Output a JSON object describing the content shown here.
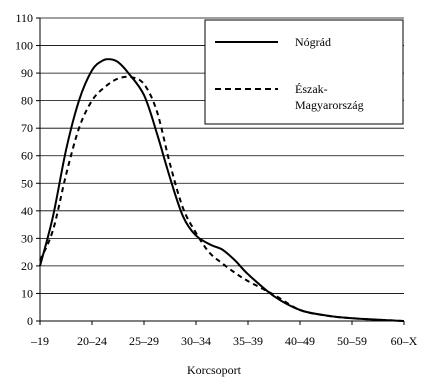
{
  "chart_data": {
    "type": "line",
    "title": "",
    "xlabel": "Korcsoport",
    "ylabel": "",
    "ylim": [
      0,
      110
    ],
    "y_ticks": [
      0,
      10,
      20,
      30,
      40,
      50,
      60,
      70,
      80,
      90,
      100,
      110
    ],
    "categories": [
      "–19",
      "20–24",
      "25–29",
      "30–34",
      "35–39",
      "40–49",
      "50–59",
      "60–X"
    ],
    "grid": "horizontal",
    "legend_position": "top-right",
    "series": [
      {
        "name": "Nógrád",
        "style": "solid",
        "color": "#000000",
        "points": [
          [
            0,
            20
          ],
          [
            0.25,
            38
          ],
          [
            0.5,
            62
          ],
          [
            0.75,
            80
          ],
          [
            1.0,
            91
          ],
          [
            1.2,
            94.5
          ],
          [
            1.35,
            95
          ],
          [
            1.5,
            94
          ],
          [
            1.7,
            90
          ],
          [
            2.0,
            82
          ],
          [
            2.25,
            68
          ],
          [
            2.5,
            52
          ],
          [
            2.75,
            38
          ],
          [
            3.0,
            31
          ],
          [
            3.3,
            27.5
          ],
          [
            3.5,
            26
          ],
          [
            3.75,
            22
          ],
          [
            4.0,
            17
          ],
          [
            4.5,
            9
          ],
          [
            5.0,
            4
          ],
          [
            5.5,
            2
          ],
          [
            6.0,
            1
          ],
          [
            7.0,
            0
          ]
        ]
      },
      {
        "name": "Észak-Magyarország",
        "style": "dashed",
        "color": "#000000",
        "points": [
          [
            0,
            22
          ],
          [
            0.25,
            33
          ],
          [
            0.5,
            53
          ],
          [
            0.75,
            70
          ],
          [
            1.0,
            80
          ],
          [
            1.25,
            85
          ],
          [
            1.5,
            88
          ],
          [
            1.75,
            88.5
          ],
          [
            2.0,
            86
          ],
          [
            2.25,
            76
          ],
          [
            2.5,
            57
          ],
          [
            2.75,
            41
          ],
          [
            3.0,
            32
          ],
          [
            3.25,
            25
          ],
          [
            3.5,
            21
          ],
          [
            3.75,
            17.5
          ],
          [
            4.0,
            14.5
          ],
          [
            4.5,
            9.5
          ],
          [
            5.0,
            4
          ],
          [
            5.5,
            2
          ],
          [
            6.0,
            1
          ],
          [
            7.0,
            0
          ]
        ]
      }
    ]
  },
  "legend": {
    "items": [
      {
        "label": "Nógrád",
        "style": "solid"
      },
      {
        "label_line1": "Észak-",
        "label_line2": "Magyarország",
        "style": "dashed"
      }
    ]
  }
}
